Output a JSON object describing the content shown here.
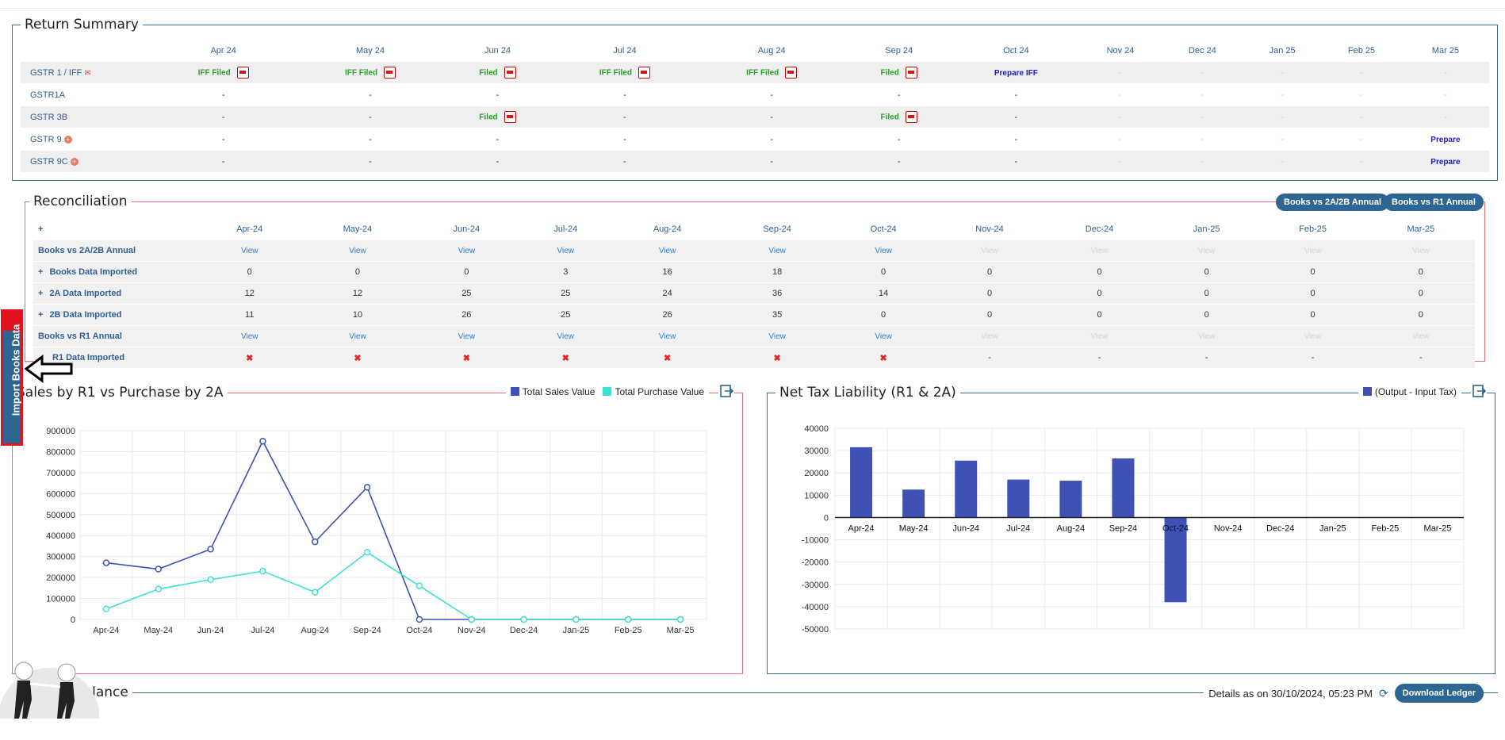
{
  "return_summary": {
    "title": "Return Summary",
    "months": [
      "Apr 24",
      "May 24",
      "Jun 24",
      "Jul 24",
      "Aug 24",
      "Sep 24",
      "Oct 24",
      "Nov 24",
      "Dec 24",
      "Jan 25",
      "Feb 25",
      "Mar 25"
    ],
    "rows": [
      {
        "name": "GSTR 1 / IFF",
        "cells": [
          "IFF Filed",
          "IFF Filed",
          "Filed",
          "IFF Filed",
          "IFF Filed",
          "Filed",
          "Prepare IFF",
          "-",
          "-",
          "-",
          "-",
          "-"
        ]
      },
      {
        "name": "GSTR1A",
        "cells": [
          "-",
          "-",
          "-",
          "-",
          "-",
          "-",
          "-",
          "-",
          "-",
          "-",
          "-",
          "-"
        ]
      },
      {
        "name": "GSTR 3B",
        "cells": [
          "-",
          "-",
          "Filed",
          "-",
          "-",
          "Filed",
          "-",
          "-",
          "-",
          "-",
          "-",
          "-"
        ]
      },
      {
        "name": "GSTR 9",
        "cells": [
          "-",
          "-",
          "-",
          "-",
          "-",
          "-",
          "-",
          "-",
          "-",
          "-",
          "-",
          "Prepare"
        ]
      },
      {
        "name": "GSTR 9C",
        "cells": [
          "-",
          "-",
          "-",
          "-",
          "-",
          "-",
          "-",
          "-",
          "-",
          "-",
          "-",
          "Prepare"
        ]
      }
    ]
  },
  "reconciliation": {
    "title": "Reconciliation",
    "buttons": {
      "annual_2a2b": "Books vs 2A/2B Annual",
      "annual_r1": "Books vs R1 Annual"
    },
    "plus": "+",
    "months": [
      "Apr-24",
      "May-24",
      "Jun-24",
      "Jul-24",
      "Aug-24",
      "Sep-24",
      "Oct-24",
      "Nov-24",
      "Dec-24",
      "Jan-25",
      "Feb-25",
      "Mar-25"
    ],
    "rows": [
      {
        "name": "Books vs 2A/2B Annual",
        "plus": false,
        "cells": [
          "View",
          "View",
          "View",
          "View",
          "View",
          "View",
          "View",
          "View",
          "View",
          "View",
          "View",
          "View"
        ]
      },
      {
        "name": "Books Data Imported",
        "plus": true,
        "cells": [
          "0",
          "0",
          "0",
          "3",
          "16",
          "18",
          "0",
          "0",
          "0",
          "0",
          "0",
          "0"
        ]
      },
      {
        "name": "2A Data Imported",
        "plus": true,
        "cells": [
          "12",
          "12",
          "25",
          "25",
          "24",
          "36",
          "14",
          "0",
          "0",
          "0",
          "0",
          "0"
        ]
      },
      {
        "name": "2B Data Imported",
        "plus": true,
        "cells": [
          "11",
          "10",
          "26",
          "25",
          "26",
          "35",
          "0",
          "0",
          "0",
          "0",
          "0",
          "0"
        ]
      },
      {
        "name": "Books vs R1 Annual",
        "plus": false,
        "cells": [
          "View",
          "View",
          "View",
          "View",
          "View",
          "View",
          "View",
          "View",
          "View",
          "View",
          "View",
          "View"
        ]
      },
      {
        "name": "R1 Data Imported",
        "plus": false,
        "cells": [
          "✖",
          "✖",
          "✖",
          "✖",
          "✖",
          "✖",
          "✖",
          "-",
          "-",
          "-",
          "-",
          "-"
        ]
      }
    ]
  },
  "side_tab": {
    "label": "Import Books Data"
  },
  "ledger": {
    "title": "Ledger Balance",
    "details": "Details as on 30/10/2024, 05:23 PM",
    "download": "Download Ledger"
  },
  "chart_data": [
    {
      "type": "line",
      "title": "Sales by R1 vs Purchase by 2A",
      "categories": [
        "Apr-24",
        "May-24",
        "Jun-24",
        "Jul-24",
        "Aug-24",
        "Sep-24",
        "Oct-24",
        "Nov-24",
        "Dec-24",
        "Jan-25",
        "Feb-25",
        "Mar-25"
      ],
      "yticks": [
        0,
        100000,
        200000,
        300000,
        400000,
        500000,
        600000,
        700000,
        800000,
        900000
      ],
      "ylim": [
        0,
        900000
      ],
      "series": [
        {
          "name": "Total Sales Value",
          "color": "#3f51b5",
          "values": [
            270000,
            240000,
            335000,
            850000,
            370000,
            630000,
            0,
            0,
            0,
            0,
            0,
            0
          ]
        },
        {
          "name": "Total Purchase Value",
          "color": "#40e0d0",
          "values": [
            50000,
            145000,
            190000,
            230000,
            130000,
            320000,
            160000,
            0,
            0,
            0,
            0,
            0
          ]
        }
      ],
      "legend": "top-right"
    },
    {
      "type": "bar",
      "title": "Net Tax Liability (R1 & 2A)",
      "categories": [
        "Apr-24",
        "May-24",
        "Jun-24",
        "Jul-24",
        "Aug-24",
        "Sep-24",
        "Oct-24",
        "Nov-24",
        "Dec-24",
        "Jan-25",
        "Feb-25",
        "Mar-25"
      ],
      "yticks": [
        -50000,
        -40000,
        -30000,
        -20000,
        -10000,
        0,
        10000,
        20000,
        30000,
        40000
      ],
      "ylim": [
        -50000,
        40000
      ],
      "series": [
        {
          "name": "(Output - Input Tax)",
          "color": "#3f51b5",
          "values": [
            31500,
            12500,
            25500,
            17000,
            16500,
            26500,
            -38000,
            0,
            0,
            0,
            0,
            0
          ]
        }
      ],
      "legend": "top-right"
    }
  ]
}
